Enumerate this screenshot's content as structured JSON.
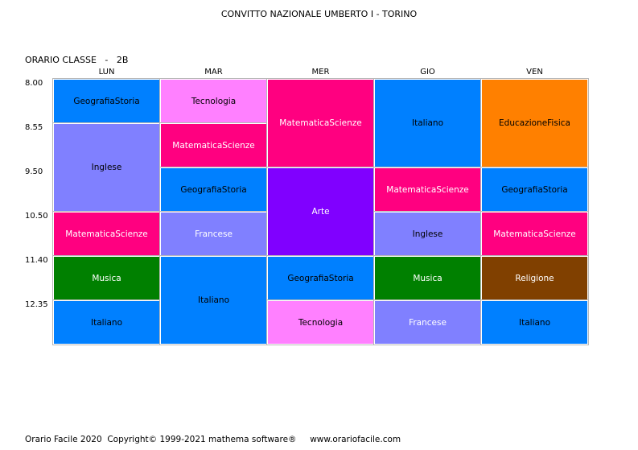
{
  "title": "CONVITTO NAZIONALE UMBERTO I - TORINO",
  "class_label": "ORARIO CLASSE   -   2B",
  "days": [
    "LUN",
    "MAR",
    "MER",
    "GIO",
    "VEN"
  ],
  "times": [
    "8.00",
    "8.55",
    "9.50",
    "10.50",
    "11.40",
    "12.35"
  ],
  "colors": {
    "blue": "#0080ff",
    "magenta": "#ff0080",
    "periwinkle": "#8080ff",
    "pink": "#ff80ff",
    "purple": "#8000ff",
    "green": "#008000",
    "orange": "#ff8000",
    "brown": "#804000"
  },
  "lessons": [
    {
      "day": 0,
      "start": 0,
      "span": 1,
      "subject": "GeografiaStoria",
      "color": "#0080ff",
      "text_color": "#000000"
    },
    {
      "day": 0,
      "start": 1,
      "span": 2,
      "subject": "Inglese",
      "color": "#8080ff",
      "text_color": "#000000"
    },
    {
      "day": 0,
      "start": 3,
      "span": 1,
      "subject": "MatematicaScienze",
      "color": "#ff0080",
      "text_color": "#ffffff"
    },
    {
      "day": 0,
      "start": 4,
      "span": 1,
      "subject": "Musica",
      "color": "#008000",
      "text_color": "#ffffff"
    },
    {
      "day": 0,
      "start": 5,
      "span": 1,
      "subject": "Italiano",
      "color": "#0080ff",
      "text_color": "#000000"
    },
    {
      "day": 1,
      "start": 0,
      "span": 1,
      "subject": "Tecnologia",
      "color": "#ff80ff",
      "text_color": "#000000"
    },
    {
      "day": 1,
      "start": 1,
      "span": 1,
      "subject": "MatematicaScienze",
      "color": "#ff0080",
      "text_color": "#ffffff"
    },
    {
      "day": 1,
      "start": 2,
      "span": 1,
      "subject": "GeografiaStoria",
      "color": "#0080ff",
      "text_color": "#000000"
    },
    {
      "day": 1,
      "start": 3,
      "span": 1,
      "subject": "Francese",
      "color": "#8080ff",
      "text_color": "#ffffff"
    },
    {
      "day": 1,
      "start": 4,
      "span": 2,
      "subject": "Italiano",
      "color": "#0080ff",
      "text_color": "#000000"
    },
    {
      "day": 2,
      "start": 0,
      "span": 2,
      "subject": "MatematicaScienze",
      "color": "#ff0080",
      "text_color": "#ffffff"
    },
    {
      "day": 2,
      "start": 2,
      "span": 2,
      "subject": "Arte",
      "color": "#8000ff",
      "text_color": "#ffffff"
    },
    {
      "day": 2,
      "start": 4,
      "span": 1,
      "subject": "GeografiaStoria",
      "color": "#0080ff",
      "text_color": "#000000"
    },
    {
      "day": 2,
      "start": 5,
      "span": 1,
      "subject": "Tecnologia",
      "color": "#ff80ff",
      "text_color": "#000000"
    },
    {
      "day": 3,
      "start": 0,
      "span": 2,
      "subject": "Italiano",
      "color": "#0080ff",
      "text_color": "#000000"
    },
    {
      "day": 3,
      "start": 2,
      "span": 1,
      "subject": "MatematicaScienze",
      "color": "#ff0080",
      "text_color": "#ffffff"
    },
    {
      "day": 3,
      "start": 3,
      "span": 1,
      "subject": "Inglese",
      "color": "#8080ff",
      "text_color": "#000000"
    },
    {
      "day": 3,
      "start": 4,
      "span": 1,
      "subject": "Musica",
      "color": "#008000",
      "text_color": "#ffffff"
    },
    {
      "day": 3,
      "start": 5,
      "span": 1,
      "subject": "Francese",
      "color": "#8080ff",
      "text_color": "#ffffff"
    },
    {
      "day": 4,
      "start": 0,
      "span": 2,
      "subject": "EducazioneFisica",
      "color": "#ff8000",
      "text_color": "#000000"
    },
    {
      "day": 4,
      "start": 2,
      "span": 1,
      "subject": "GeografiaStoria",
      "color": "#0080ff",
      "text_color": "#000000"
    },
    {
      "day": 4,
      "start": 3,
      "span": 1,
      "subject": "MatematicaScienze",
      "color": "#ff0080",
      "text_color": "#ffffff"
    },
    {
      "day": 4,
      "start": 4,
      "span": 1,
      "subject": "Religione",
      "color": "#804000",
      "text_color": "#ffffff"
    },
    {
      "day": 4,
      "start": 5,
      "span": 1,
      "subject": "Italiano",
      "color": "#0080ff",
      "text_color": "#000000"
    }
  ],
  "footer": "Orario Facile 2020  Copyright© 1999-2021 mathema software®     www.orariofacile.com"
}
